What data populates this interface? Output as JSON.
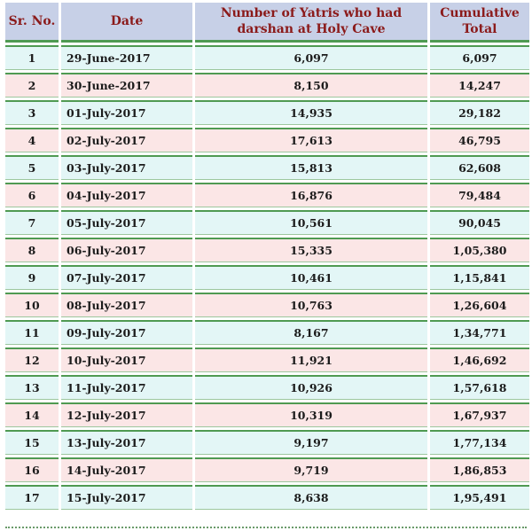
{
  "headers": {
    "sr": "Sr. No.",
    "date": "Date",
    "yatris": "Number of Yatris who had darshan at Holy Cave",
    "cumulative": "Cumulative Total"
  },
  "rows": [
    {
      "sr": "1",
      "date": "29-June-2017",
      "yatris": "6,097",
      "cumulative": "6,097"
    },
    {
      "sr": "2",
      "date": "30-June-2017",
      "yatris": "8,150",
      "cumulative": "14,247"
    },
    {
      "sr": "3",
      "date": "01-July-2017",
      "yatris": "14,935",
      "cumulative": "29,182"
    },
    {
      "sr": "4",
      "date": "02-July-2017",
      "yatris": "17,613",
      "cumulative": "46,795"
    },
    {
      "sr": "5",
      "date": "03-July-2017",
      "yatris": "15,813",
      "cumulative": "62,608"
    },
    {
      "sr": "6",
      "date": "04-July-2017",
      "yatris": "16,876",
      "cumulative": "79,484"
    },
    {
      "sr": "7",
      "date": "05-July-2017",
      "yatris": "10,561",
      "cumulative": "90,045"
    },
    {
      "sr": "8",
      "date": "06-July-2017",
      "yatris": "15,335",
      "cumulative": "1,05,380"
    },
    {
      "sr": "9",
      "date": "07-July-2017",
      "yatris": "10,461",
      "cumulative": "1,15,841"
    },
    {
      "sr": "10",
      "date": "08-July-2017",
      "yatris": "10,763",
      "cumulative": "1,26,604"
    },
    {
      "sr": "11",
      "date": "09-July-2017",
      "yatris": "8,167",
      "cumulative": "1,34,771"
    },
    {
      "sr": "12",
      "date": "10-July-2017",
      "yatris": "11,921",
      "cumulative": "1,46,692"
    },
    {
      "sr": "13",
      "date": "11-July-2017",
      "yatris": "10,926",
      "cumulative": "1,57,618"
    },
    {
      "sr": "14",
      "date": "12-July-2017",
      "yatris": "10,319",
      "cumulative": "1,67,937"
    },
    {
      "sr": "15",
      "date": "13-July-2017",
      "yatris": "9,197",
      "cumulative": "1,77,134"
    },
    {
      "sr": "16",
      "date": "14-July-2017",
      "yatris": "9,719",
      "cumulative": "1,86,853"
    },
    {
      "sr": "17",
      "date": "15-July-2017",
      "yatris": "8,638",
      "cumulative": "1,95,491"
    }
  ],
  "colors": {
    "header_bg": "#c7d0e7",
    "header_text": "#8b1a1a",
    "row_odd_bg": "#e3f6f6",
    "row_even_bg": "#fbe6e6",
    "rule": "#4f9a52"
  }
}
